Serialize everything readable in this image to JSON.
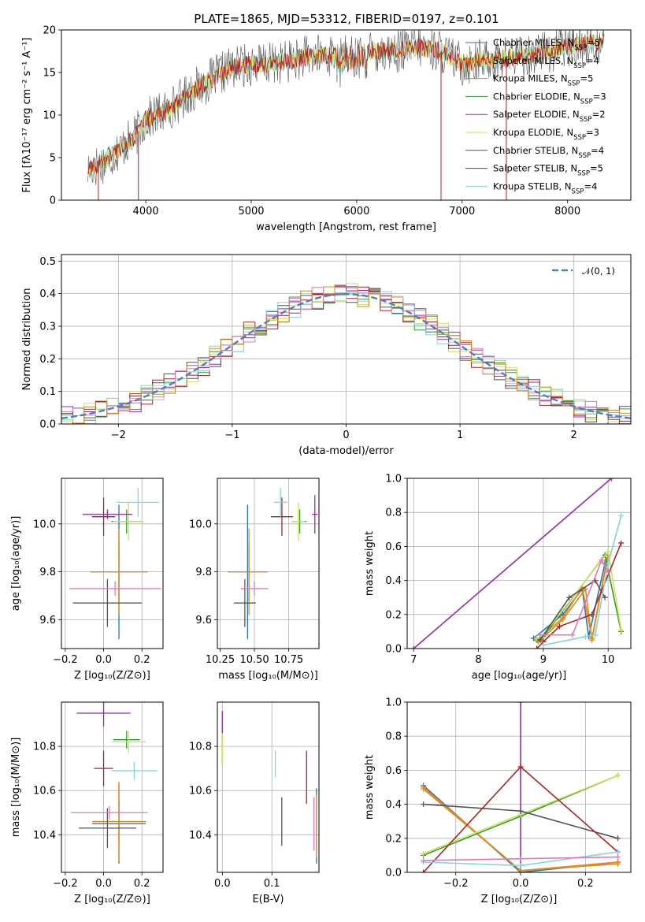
{
  "figure_title": "PLATE=1865, MJD=53312, FIBERID=0197, z=0.101",
  "colors": {
    "Chabrier MILES": "#1f77b4",
    "Salpeter MILES": "#ff7f0e",
    "Kroupa MILES": "#ff7f0e",
    "Chabrier ELODIE": "#2ca02c",
    "Salpeter ELODIE": "#9467bd",
    "Kroupa ELODIE": "#bcbd22",
    "Chabrier STELIB": "#555555",
    "Salpeter STELIB": "#b22222",
    "Kroupa STELIB": "#7fd6dc",
    "pink": "#e377c2",
    "gauss": "#4a7fc8"
  },
  "chart_data": [
    {
      "id": "spectrum",
      "type": "line",
      "title": "PLATE=1865, MJD=53312, FIBERID=0197, z=0.101",
      "xlabel": "wavelength [Angstrom, rest frame]",
      "ylabel": "Flux [fλ10⁻¹⁷ erg cm⁻² s⁻¹ A⁻¹]",
      "xlim": [
        3200,
        8600
      ],
      "ylim": [
        0,
        20
      ],
      "xticks": [
        "4000",
        "5000",
        "6000",
        "7000",
        "8000"
      ],
      "yticks": [
        "0",
        "5",
        "10",
        "15",
        "20"
      ],
      "grid": false,
      "legend_position": "right",
      "legend": [
        {
          "label": "Chabrier MILES, N",
          "sub": "SSP",
          "tail": "=5",
          "color": "#1f77b4"
        },
        {
          "label": "Salpeter MILES, N",
          "sub": "SSP",
          "tail": "=4",
          "color": "#ff7f0e"
        },
        {
          "label": "Kroupa MILES, N",
          "sub": "SSP",
          "tail": "=5",
          "color": "#d98b1c"
        },
        {
          "label": "Chabrier ELODIE, N",
          "sub": "SSP",
          "tail": "=3",
          "color": "#2ca02c"
        },
        {
          "label": "Salpeter ELODIE, N",
          "sub": "SSP",
          "tail": "=2",
          "color": "#9c27b0"
        },
        {
          "label": "Kroupa ELODIE, N",
          "sub": "SSP",
          "tail": "=3",
          "color": "#d4e157"
        },
        {
          "label": "Chabrier STELIB, N",
          "sub": "SSP",
          "tail": "=4",
          "color": "#555555"
        },
        {
          "label": "Salpeter STELIB, N",
          "sub": "SSP",
          "tail": "=5",
          "color": "#b22222"
        },
        {
          "label": "Kroupa STELIB, N",
          "sub": "SSP",
          "tail": "=4",
          "color": "#7fd6dc"
        }
      ],
      "continuum": {
        "x": [
          3450,
          3600,
          3800,
          3900,
          4000,
          4200,
          4400,
          4600,
          4800,
          5000,
          5200,
          5400,
          5600,
          5800,
          6000,
          6200,
          6400,
          6600,
          6800,
          7000,
          7200,
          7300,
          7600,
          7800,
          8000,
          8200,
          8350
        ],
        "y": [
          3.5,
          4.5,
          6.5,
          7.5,
          9.5,
          10.5,
          12.5,
          14,
          15.5,
          16,
          16,
          16.5,
          17,
          17,
          17.5,
          17.5,
          17.5,
          18,
          17.5,
          16,
          16.5,
          16.5,
          17,
          17.5,
          18,
          18.5,
          18.5
        ]
      },
      "dips": [
        {
          "x": 3550,
          "y": 0
        },
        {
          "x": 3930,
          "y": 0
        },
        {
          "x": 6800,
          "y": 0
        },
        {
          "x": 7420,
          "y": 0
        }
      ]
    },
    {
      "id": "residuals",
      "type": "step",
      "xlabel": "(data-model)/error",
      "ylabel": "Normed distribution",
      "xlim": [
        -2.5,
        2.5
      ],
      "ylim": [
        0,
        0.52
      ],
      "xticks": [
        "−2",
        "−1",
        "0",
        "1",
        "2"
      ],
      "yticks": [
        "0.0",
        "0.1",
        "0.2",
        "0.3",
        "0.4",
        "0.5"
      ],
      "grid": true,
      "legend_position": "top-right",
      "legend": [
        {
          "label": "𝒩(0, 1)",
          "color": "#4a7fc8"
        }
      ],
      "gaussian": {
        "mean": 0,
        "sigma": 1
      }
    },
    {
      "id": "age-vs-Z",
      "type": "errorbar",
      "xlabel": "Z [log₁₀(Z/Z⊙)]",
      "ylabel": "age  [log₁₀(age/yr)]",
      "xlim": [
        -0.22,
        0.31
      ],
      "ylim": [
        9.48,
        10.19
      ],
      "xticks": [
        "−0.2",
        "0.0",
        "0.2"
      ],
      "yticks": [
        "9.6",
        "9.8",
        "10.0"
      ],
      "xtick_values": [
        -0.2,
        0,
        0.2
      ],
      "ytick_values": [
        9.6,
        9.8,
        10.0
      ],
      "grid": true,
      "points": [
        {
          "x": 0.08,
          "y": 9.8,
          "xerr": 0.15,
          "yerr": 0.28,
          "color": "#1f77b4"
        },
        {
          "x": 0.08,
          "y": 9.8,
          "xerr": 0.15,
          "yerr": 0.18,
          "color": "#ff7f0e"
        },
        {
          "x": 0.08,
          "y": 9.8,
          "xerr": 0.12,
          "yerr": 0.12,
          "color": "#d98b1c"
        },
        {
          "x": 0.12,
          "y": 10.01,
          "xerr": 0.08,
          "yerr": 0.05,
          "color": "#2ca02c"
        },
        {
          "x": 0.13,
          "y": 10.01,
          "xerr": 0.08,
          "yerr": 0.08,
          "color": "#d4e157"
        },
        {
          "x": 0.02,
          "y": 10.04,
          "xerr": 0.13,
          "yerr": 0.02,
          "color": "#9c27b0"
        },
        {
          "x": 0.02,
          "y": 9.67,
          "xerr": 0.18,
          "yerr": 0.1,
          "color": "#555555"
        },
        {
          "x": 0.0,
          "y": 10.03,
          "xerr": 0.06,
          "yerr": 0.08,
          "color": "#b22222"
        },
        {
          "x": 0.18,
          "y": 10.09,
          "xerr": 0.11,
          "yerr": 0.06,
          "color": "#7fd6dc"
        },
        {
          "x": 0.06,
          "y": 9.73,
          "xerr": 0.24,
          "yerr": 0.03,
          "color": "#e377c2"
        }
      ]
    },
    {
      "id": "age-vs-mass",
      "type": "errorbar",
      "xlabel": "mass [log₁₀(M/M⊙)]",
      "ylabel": "",
      "xlim": [
        10.23,
        10.97
      ],
      "ylim": [
        9.48,
        10.19
      ],
      "xticks": [
        "10.25",
        "10.50",
        "10.75"
      ],
      "yticks": [
        "9.6",
        "9.8",
        "10.0"
      ],
      "xtick_values": [
        10.25,
        10.5,
        10.75
      ],
      "ytick_values": [
        9.6,
        9.8,
        10.0
      ],
      "grid": true,
      "points": [
        {
          "x": 10.45,
          "y": 9.8,
          "xerr": 0.14,
          "yerr": 0.28,
          "color": "#1f77b4"
        },
        {
          "x": 10.46,
          "y": 9.8,
          "xerr": 0.14,
          "yerr": 0.18,
          "color": "#ff7f0e"
        },
        {
          "x": 10.46,
          "y": 9.8,
          "xerr": 0.1,
          "yerr": 0.12,
          "color": "#d98b1c"
        },
        {
          "x": 10.83,
          "y": 10.01,
          "xerr": 0.05,
          "yerr": 0.05,
          "color": "#2ca02c"
        },
        {
          "x": 10.82,
          "y": 10.01,
          "xerr": 0.05,
          "yerr": 0.08,
          "color": "#d4e157"
        },
        {
          "x": 10.94,
          "y": 10.04,
          "xerr": 0.02,
          "yerr": 0.08,
          "color": "#9c27b0"
        },
        {
          "x": 10.43,
          "y": 9.67,
          "xerr": 0.08,
          "yerr": 0.1,
          "color": "#555555"
        },
        {
          "x": 10.7,
          "y": 10.03,
          "xerr": 0.08,
          "yerr": 0.08,
          "color": "#b22222"
        },
        {
          "x": 10.69,
          "y": 10.09,
          "xerr": 0.05,
          "yerr": 0.06,
          "color": "#7fd6dc"
        },
        {
          "x": 10.5,
          "y": 9.73,
          "xerr": 0.1,
          "yerr": 0.03,
          "color": "#e377c2"
        }
      ]
    },
    {
      "id": "weight-vs-age",
      "type": "line",
      "xlabel": "age  [log₁₀(age/yr)]",
      "ylabel": "mass weight",
      "xlim": [
        6.9,
        10.35
      ],
      "ylim": [
        0,
        1
      ],
      "xticks": [
        "7",
        "8",
        "9",
        "10"
      ],
      "yticks": [
        "0.0",
        "0.2",
        "0.4",
        "0.6",
        "0.8",
        "1.0"
      ],
      "xtick_values": [
        7,
        8,
        9,
        10
      ],
      "ytick_values": [
        0,
        0.2,
        0.4,
        0.6,
        0.8,
        1.0
      ],
      "grid": true,
      "series": [
        {
          "color": "#9c27b0",
          "x": [
            7.0,
            10.05
          ],
          "y": [
            0.0,
            1.0
          ]
        },
        {
          "color": "#1f77b4",
          "x": [
            8.85,
            9.3,
            9.6,
            9.7,
            9.95
          ],
          "y": [
            0.06,
            0.2,
            0.35,
            0.07,
            0.5
          ]
        },
        {
          "color": "#ff7f0e",
          "x": [
            8.9,
            9.3,
            9.6,
            9.75,
            9.98
          ],
          "y": [
            0.05,
            0.18,
            0.36,
            0.06,
            0.52
          ]
        },
        {
          "color": "#d98b1c",
          "x": [
            8.92,
            9.3,
            9.65,
            9.75,
            10.0
          ],
          "y": [
            0.04,
            0.17,
            0.35,
            0.05,
            0.55
          ]
        },
        {
          "color": "#2ca02c",
          "x": [
            8.9,
            9.0,
            9.95,
            10.2
          ],
          "y": [
            0.05,
            0.07,
            0.55,
            0.1
          ]
        },
        {
          "color": "#d4e157",
          "x": [
            8.9,
            9.0,
            10.0,
            10.2
          ],
          "y": [
            0.06,
            0.08,
            0.57,
            0.11
          ]
        },
        {
          "color": "#555555",
          "x": [
            8.95,
            9.4,
            9.8,
            9.95
          ],
          "y": [
            0.05,
            0.3,
            0.4,
            0.3
          ]
        },
        {
          "color": "#b22222",
          "x": [
            8.9,
            9.0,
            9.25,
            9.75,
            10.2
          ],
          "y": [
            0.0,
            0.04,
            0.13,
            0.2,
            0.62
          ]
        },
        {
          "color": "#7fd6dc",
          "x": [
            9.0,
            9.65,
            9.8,
            10.0,
            10.2
          ],
          "y": [
            0.02,
            0.07,
            0.08,
            0.5,
            0.78
          ]
        },
        {
          "color": "#e377c2",
          "x": [
            8.95,
            9.45,
            9.9,
            10.0
          ],
          "y": [
            0.08,
            0.08,
            0.52,
            0.45
          ]
        }
      ]
    },
    {
      "id": "mass-vs-Z",
      "type": "errorbar",
      "xlabel": "Z [log₁₀(Z/Z⊙)]",
      "ylabel": "mass [log₁₀(M/M⊙)]",
      "xlim": [
        -0.22,
        0.31
      ],
      "ylim": [
        10.23,
        11.0
      ],
      "xticks": [
        "−0.2",
        "0.0",
        "0.2"
      ],
      "yticks": [
        "10.4",
        "10.6",
        "10.8"
      ],
      "xtick_values": [
        -0.2,
        0,
        0.2
      ],
      "ytick_values": [
        10.4,
        10.6,
        10.8
      ],
      "grid": true,
      "points": [
        {
          "x": 0.08,
          "y": 10.45,
          "xerr": 0.14,
          "yerr": 0.18,
          "color": "#1f77b4"
        },
        {
          "x": 0.08,
          "y": 10.46,
          "xerr": 0.14,
          "yerr": 0.18,
          "color": "#ff7f0e"
        },
        {
          "x": 0.08,
          "y": 10.46,
          "xerr": 0.12,
          "yerr": 0.1,
          "color": "#d98b1c"
        },
        {
          "x": 0.12,
          "y": 10.83,
          "xerr": 0.07,
          "yerr": 0.04,
          "color": "#2ca02c"
        },
        {
          "x": 0.13,
          "y": 10.82,
          "xerr": 0.09,
          "yerr": 0.05,
          "color": "#d4e157"
        },
        {
          "x": 0.0,
          "y": 10.95,
          "xerr": 0.14,
          "yerr": 0.06,
          "color": "#9c27b0"
        },
        {
          "x": 0.02,
          "y": 10.43,
          "xerr": 0.15,
          "yerr": 0.09,
          "color": "#555555"
        },
        {
          "x": 0.0,
          "y": 10.7,
          "xerr": 0.05,
          "yerr": 0.08,
          "color": "#b22222"
        },
        {
          "x": 0.16,
          "y": 10.69,
          "xerr": 0.12,
          "yerr": 0.04,
          "color": "#7fd6dc"
        },
        {
          "x": 0.03,
          "y": 10.5,
          "xerr": 0.2,
          "yerr": 0.03,
          "color": "#e377c2"
        }
      ]
    },
    {
      "id": "mass-vs-ebv",
      "type": "errorbar",
      "xlabel": "E(B-V)",
      "ylabel": "",
      "xlim": [
        -0.01,
        0.195
      ],
      "ylim": [
        10.23,
        11.0
      ],
      "xticks": [
        "0.0",
        "0.1"
      ],
      "yticks": [
        "10.4",
        "10.6",
        "10.8"
      ],
      "xtick_values": [
        0,
        0.1
      ],
      "ytick_values": [
        10.4,
        10.6,
        10.8
      ],
      "grid": true,
      "points": [
        {
          "x": 0.19,
          "y": 10.44,
          "xerr": 0,
          "yerr": 0.17,
          "color": "#1f77b4"
        },
        {
          "x": 0.19,
          "y": 10.44,
          "xerr": 0,
          "yerr": 0.14,
          "color": "#ff7f0e"
        },
        {
          "x": 0.0,
          "y": 10.8,
          "xerr": 0,
          "yerr": 0.08,
          "color": "#2ca02c"
        },
        {
          "x": 0.0,
          "y": 10.8,
          "xerr": 0,
          "yerr": 0.09,
          "color": "#d4e157"
        },
        {
          "x": 0.0,
          "y": 10.91,
          "xerr": 0,
          "yerr": 0.05,
          "color": "#9c27b0"
        },
        {
          "x": 0.12,
          "y": 10.46,
          "xerr": 0,
          "yerr": 0.11,
          "color": "#555555"
        },
        {
          "x": 0.17,
          "y": 10.66,
          "xerr": 0,
          "yerr": 0.12,
          "color": "#b22222"
        },
        {
          "x": 0.107,
          "y": 10.72,
          "xerr": 0,
          "yerr": 0.06,
          "color": "#7fd6dc"
        },
        {
          "x": 0.185,
          "y": 10.45,
          "xerr": 0,
          "yerr": 0.12,
          "color": "#e377c2"
        }
      ]
    },
    {
      "id": "weight-vs-Z",
      "type": "line",
      "xlabel": "Z [log₁₀(Z/Z⊙)]",
      "ylabel": "mass weight",
      "xlim": [
        -0.35,
        0.34
      ],
      "ylim": [
        0,
        1
      ],
      "xticks": [
        "−0.2",
        "0.0",
        "0.2"
      ],
      "yticks": [
        "0.0",
        "0.2",
        "0.4",
        "0.6",
        "0.8",
        "1.0"
      ],
      "xtick_values": [
        -0.2,
        0,
        0.2
      ],
      "ytick_values": [
        0,
        0.2,
        0.4,
        0.6,
        0.8,
        1.0
      ],
      "grid": true,
      "series": [
        {
          "color": "#9c27b0",
          "x": [
            0.0,
            0.0
          ],
          "y": [
            0.0,
            1.0
          ]
        },
        {
          "color": "#1f77b4",
          "x": [
            -0.3,
            0.0,
            0.3
          ],
          "y": [
            0.51,
            0.0,
            0.06
          ]
        },
        {
          "color": "#ff7f0e",
          "x": [
            -0.3,
            0.0,
            0.3
          ],
          "y": [
            0.5,
            0.01,
            0.06
          ]
        },
        {
          "color": "#d98b1c",
          "x": [
            -0.3,
            0.0,
            0.3
          ],
          "y": [
            0.49,
            0.01,
            0.05
          ]
        },
        {
          "color": "#2ca02c",
          "x": [
            -0.3,
            0.0,
            0.3
          ],
          "y": [
            0.1,
            0.33,
            0.57
          ]
        },
        {
          "color": "#d4e157",
          "x": [
            -0.3,
            0.0,
            0.3
          ],
          "y": [
            0.11,
            0.34,
            0.57
          ]
        },
        {
          "color": "#555555",
          "x": [
            -0.3,
            0.0,
            0.3
          ],
          "y": [
            0.4,
            0.36,
            0.2
          ]
        },
        {
          "color": "#b22222",
          "x": [
            -0.3,
            0.0,
            0.3
          ],
          "y": [
            0.0,
            0.62,
            0.12
          ]
        },
        {
          "color": "#7fd6dc",
          "x": [
            -0.3,
            0.0,
            0.3
          ],
          "y": [
            0.06,
            0.04,
            0.12
          ]
        },
        {
          "color": "#e377c2",
          "x": [
            -0.3,
            0.0,
            0.3
          ],
          "y": [
            0.07,
            0.08,
            0.09
          ]
        }
      ]
    }
  ]
}
